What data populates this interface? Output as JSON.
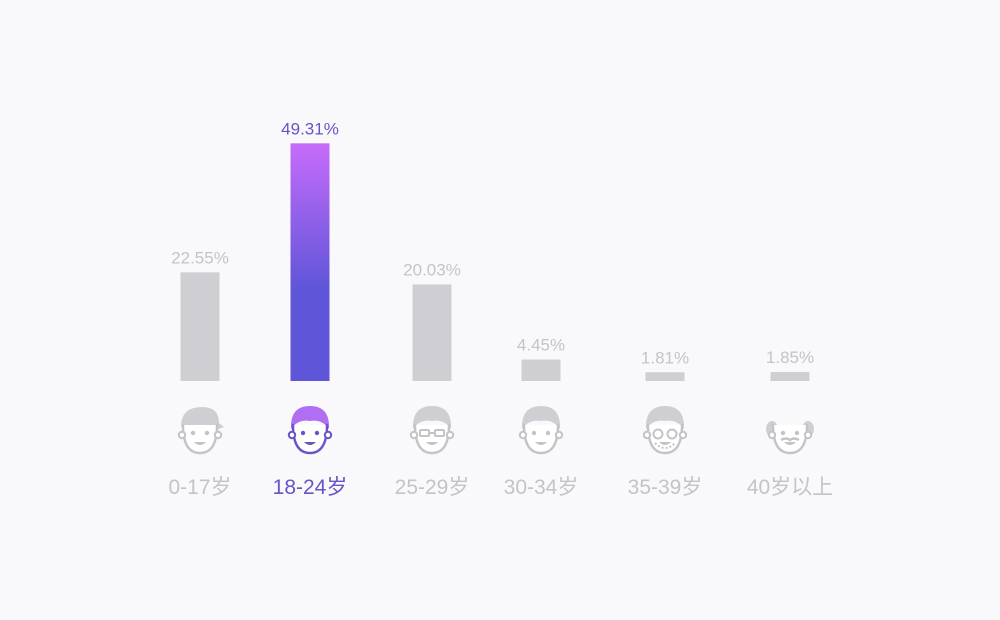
{
  "chart_data": {
    "type": "bar",
    "categories": [
      "0-17岁",
      "18-24岁",
      "25-29岁",
      "30-34岁",
      "35-39岁",
      "40岁以上"
    ],
    "values": [
      22.55,
      49.31,
      20.03,
      4.45,
      1.81,
      1.85
    ],
    "value_labels": [
      "22.55%",
      "49.31%",
      "20.03%",
      "4.45%",
      "1.81%",
      "1.85%"
    ],
    "highlight_index": 1,
    "icons": [
      "child-cap-face-icon",
      "young-man-face-icon",
      "glasses-man-face-icon",
      "adult-man-face-icon",
      "bearded-glasses-man-face-icon",
      "bald-elder-face-icon"
    ],
    "ylim": [
      0,
      50
    ],
    "grid": false,
    "legend": "none"
  },
  "colors": {
    "background": "#f9f9fb",
    "muted_bar": "#cfcfd3",
    "muted_text": "#c4c4c8",
    "highlight_text": "#6a53c7",
    "highlight_top": "#c66cfb",
    "highlight_bottom": "#5e55d8"
  }
}
